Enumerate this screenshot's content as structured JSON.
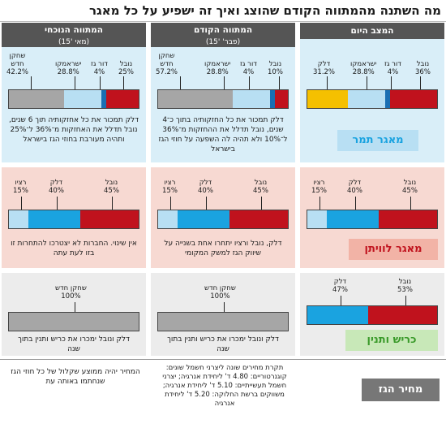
{
  "title": "מה השתנה מהמתווה הקודם שהוצג ואיך זה ישפיע על כל מאגר",
  "columns": {
    "current": {
      "label": "המתווה הנוכחי",
      "sub": "(מאי '15)"
    },
    "previous": {
      "label": "המתווה הקודם",
      "sub": "(פבר' '15)"
    },
    "today": {
      "label": "המצב היום"
    }
  },
  "colors": {
    "noble": "#c0121d",
    "delek": "#1aa3e0",
    "ratio": "#b8dff3",
    "newplayer": "#a6a6a6",
    "dorgas": "#1a6fb3",
    "israamco": "#b8dff3",
    "delek_today": "#f5c000",
    "tamar_bg": "#d9eef8",
    "leviathan_bg": "#f7d9d2",
    "karish_bg": "#ececec"
  },
  "tamar": {
    "tag": "מאגר תמר",
    "current": {
      "labels": {
        "new": "שחקן",
        "new2": "חדש",
        "new_val": "42.2%",
        "isr": "ישראמקו",
        "isr_val": "28.8%",
        "dor": "דור גז",
        "dor_val": "4%",
        "noble": "נובל",
        "noble_val": "25%"
      },
      "note": "דלק תמכור את כל אחזקותיה תוך 6 שנים, נובל תדלל את האחזקות מ־36% ל־25% ותהיה מעורבת בחוזי הגז בישראל"
    },
    "previous": {
      "labels": {
        "new": "שחקן",
        "new2": "חדש",
        "new_val": "57.2%",
        "isr": "ישראמקו",
        "isr_val": "28.8%",
        "dor": "דור גז",
        "dor_val": "4%",
        "noble": "נובל",
        "noble_val": "10%"
      },
      "note": "דלק תמכור את כל החזקותיה בתוך כ־4 שנים, נובל תדלל את ההחזקות מ־36% ל־10% ולא תהיה לה השפעה על חוזי הגז בישראל"
    },
    "today": {
      "labels": {
        "delek": "דלק",
        "delek_val": "31.2%",
        "isr": "ישראמקו",
        "isr_val": "28.8%",
        "dor": "דור גז",
        "dor_val": "4%",
        "noble": "נובל",
        "noble_val": "36%"
      }
    }
  },
  "leviathan": {
    "tag": "מאגר לוויתן",
    "shares": {
      "ratio": "רציו",
      "ratio_val": "15%",
      "delek": "דלק",
      "delek_val": "40%",
      "noble": "נובל",
      "noble_val": "45%"
    },
    "current_note": "אין שינוי. החברות לא יצטרכו להתחרות זו בזו לעת עתה",
    "previous_note": "דלק, נובל ורציו יתחרו אחת בשנייה על שיווק הגז למשק המקומי"
  },
  "karish": {
    "tag": "כריש ותנין",
    "current": {
      "new": "שחקן חדש",
      "new_val": "100%",
      "note": "דלק ונובל ימכרו את כריש ותנין בתוך שנה"
    },
    "previous": {
      "new": "שחקן חדש",
      "new_val": "100%",
      "note": "דלק ונובל ימכרו את כריש ותנין בתוך שנה"
    },
    "today": {
      "delek": "דלק",
      "delek_val": "47%",
      "noble": "נובל",
      "noble_val": "53%"
    }
  },
  "gas": {
    "tag": "מחיר הגז",
    "current_note": "המחיר יהיה ממוצע שקלול של כל חוזי הגז שנחתמו באותה עת",
    "previous_note": "תקרת מחירים שונה ליצרני חשמל שונים: קוגנרטוריים: 4.80 ד' ליחידת אנרגיה; יצרני חשמל תעשייתיים: 5.10 ד' ליחידת אנרגיה; משווקים ברשת החלוקה: 5.20 ד' ליחידת אנרגיה"
  }
}
